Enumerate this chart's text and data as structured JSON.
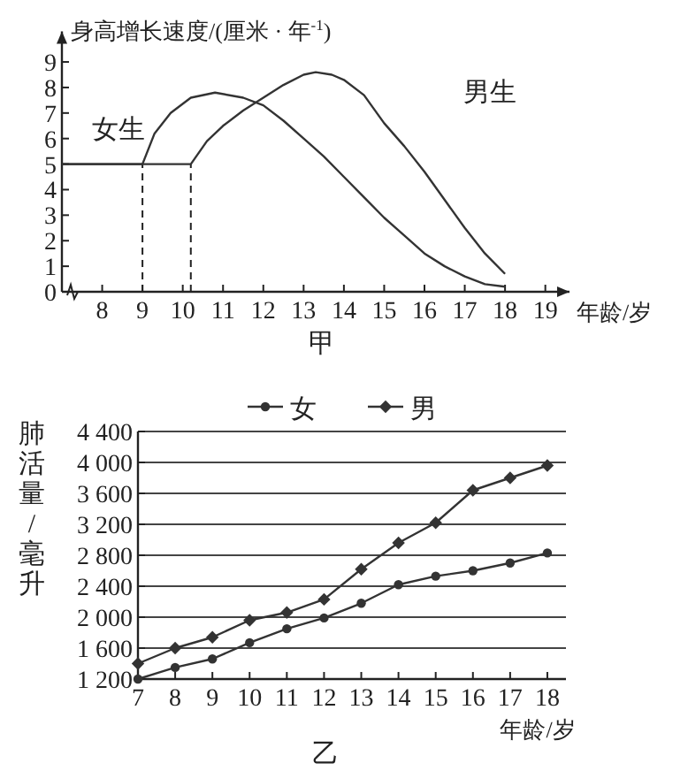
{
  "chart_data": [
    {
      "type": "line",
      "title": "甲",
      "xlabel": "年龄/岁",
      "ylabel": "身高增长速度/(厘米 · 年$^{-1}$)",
      "xlim": [
        7,
        19.6
      ],
      "ylim": [
        0,
        10.2
      ],
      "xticks": [
        8,
        9,
        10,
        11,
        12,
        13,
        14,
        15,
        16,
        17,
        18,
        19
      ],
      "yticks": [
        0,
        1,
        2,
        3,
        4,
        5,
        6,
        7,
        8,
        9
      ],
      "grid": false,
      "legend": false,
      "ref_lines": [
        {
          "axis": "x",
          "value": 9,
          "line_style": "dashed"
        },
        {
          "axis": "x",
          "value": 10.2,
          "line_style": "dashed"
        }
      ],
      "series": [
        {
          "name": "女生",
          "color": "#333333",
          "x": [
            7,
            9,
            9.3,
            9.7,
            10.2,
            10.8,
            11.5,
            12,
            12.5,
            13,
            13.5,
            14,
            14.5,
            15,
            15.5,
            16,
            16.5,
            17,
            17.5,
            18
          ],
          "values": [
            5,
            5,
            6.2,
            7,
            7.6,
            7.8,
            7.6,
            7.3,
            6.7,
            6,
            5.3,
            4.5,
            3.7,
            2.9,
            2.2,
            1.5,
            1,
            0.6,
            0.3,
            0.2
          ]
        },
        {
          "name": "男生",
          "color": "#333333",
          "x": [
            7,
            10.2,
            10.6,
            11,
            11.5,
            12,
            12.5,
            13,
            13.3,
            13.7,
            14,
            14.5,
            15,
            15.5,
            16,
            16.5,
            17,
            17.5,
            18
          ],
          "values": [
            5,
            5,
            5.9,
            6.5,
            7.1,
            7.6,
            8.1,
            8.5,
            8.6,
            8.5,
            8.3,
            7.7,
            6.6,
            5.7,
            4.7,
            3.6,
            2.5,
            1.5,
            0.7
          ]
        }
      ]
    },
    {
      "type": "line",
      "title": "乙",
      "xlabel": "年龄/岁",
      "ylabel": "肺活量/毫升",
      "xlim": [
        7,
        18.5
      ],
      "ylim": [
        1200,
        4400
      ],
      "xticks": [
        7,
        8,
        9,
        10,
        11,
        12,
        13,
        14,
        15,
        16,
        17,
        18
      ],
      "yticks": [
        {
          "value": 1200,
          "label": "1 200"
        },
        {
          "value": 1600,
          "label": "1 600"
        },
        {
          "value": 2000,
          "label": "2 000"
        },
        {
          "value": 2400,
          "label": "2 400"
        },
        {
          "value": 2800,
          "label": "2 800"
        },
        {
          "value": 3200,
          "label": "3 200"
        },
        {
          "value": 3600,
          "label": "3 600"
        },
        {
          "value": 4000,
          "label": "4 000"
        },
        {
          "value": 4400,
          "label": "4 400"
        }
      ],
      "grid": "y",
      "legend": "top",
      "x": [
        7,
        8,
        9,
        10,
        11,
        12,
        13,
        14,
        15,
        16,
        17,
        18
      ],
      "series": [
        {
          "name": "女",
          "color": "#333333",
          "marker": "circle",
          "values": [
            1200,
            1350,
            1460,
            1670,
            1850,
            1990,
            2180,
            2420,
            2530,
            2600,
            2700,
            2830
          ]
        },
        {
          "name": "男",
          "color": "#333333",
          "marker": "diamond",
          "values": [
            1400,
            1600,
            1740,
            1960,
            2060,
            2230,
            2620,
            2960,
            3220,
            3640,
            3800,
            3960
          ]
        }
      ]
    }
  ]
}
